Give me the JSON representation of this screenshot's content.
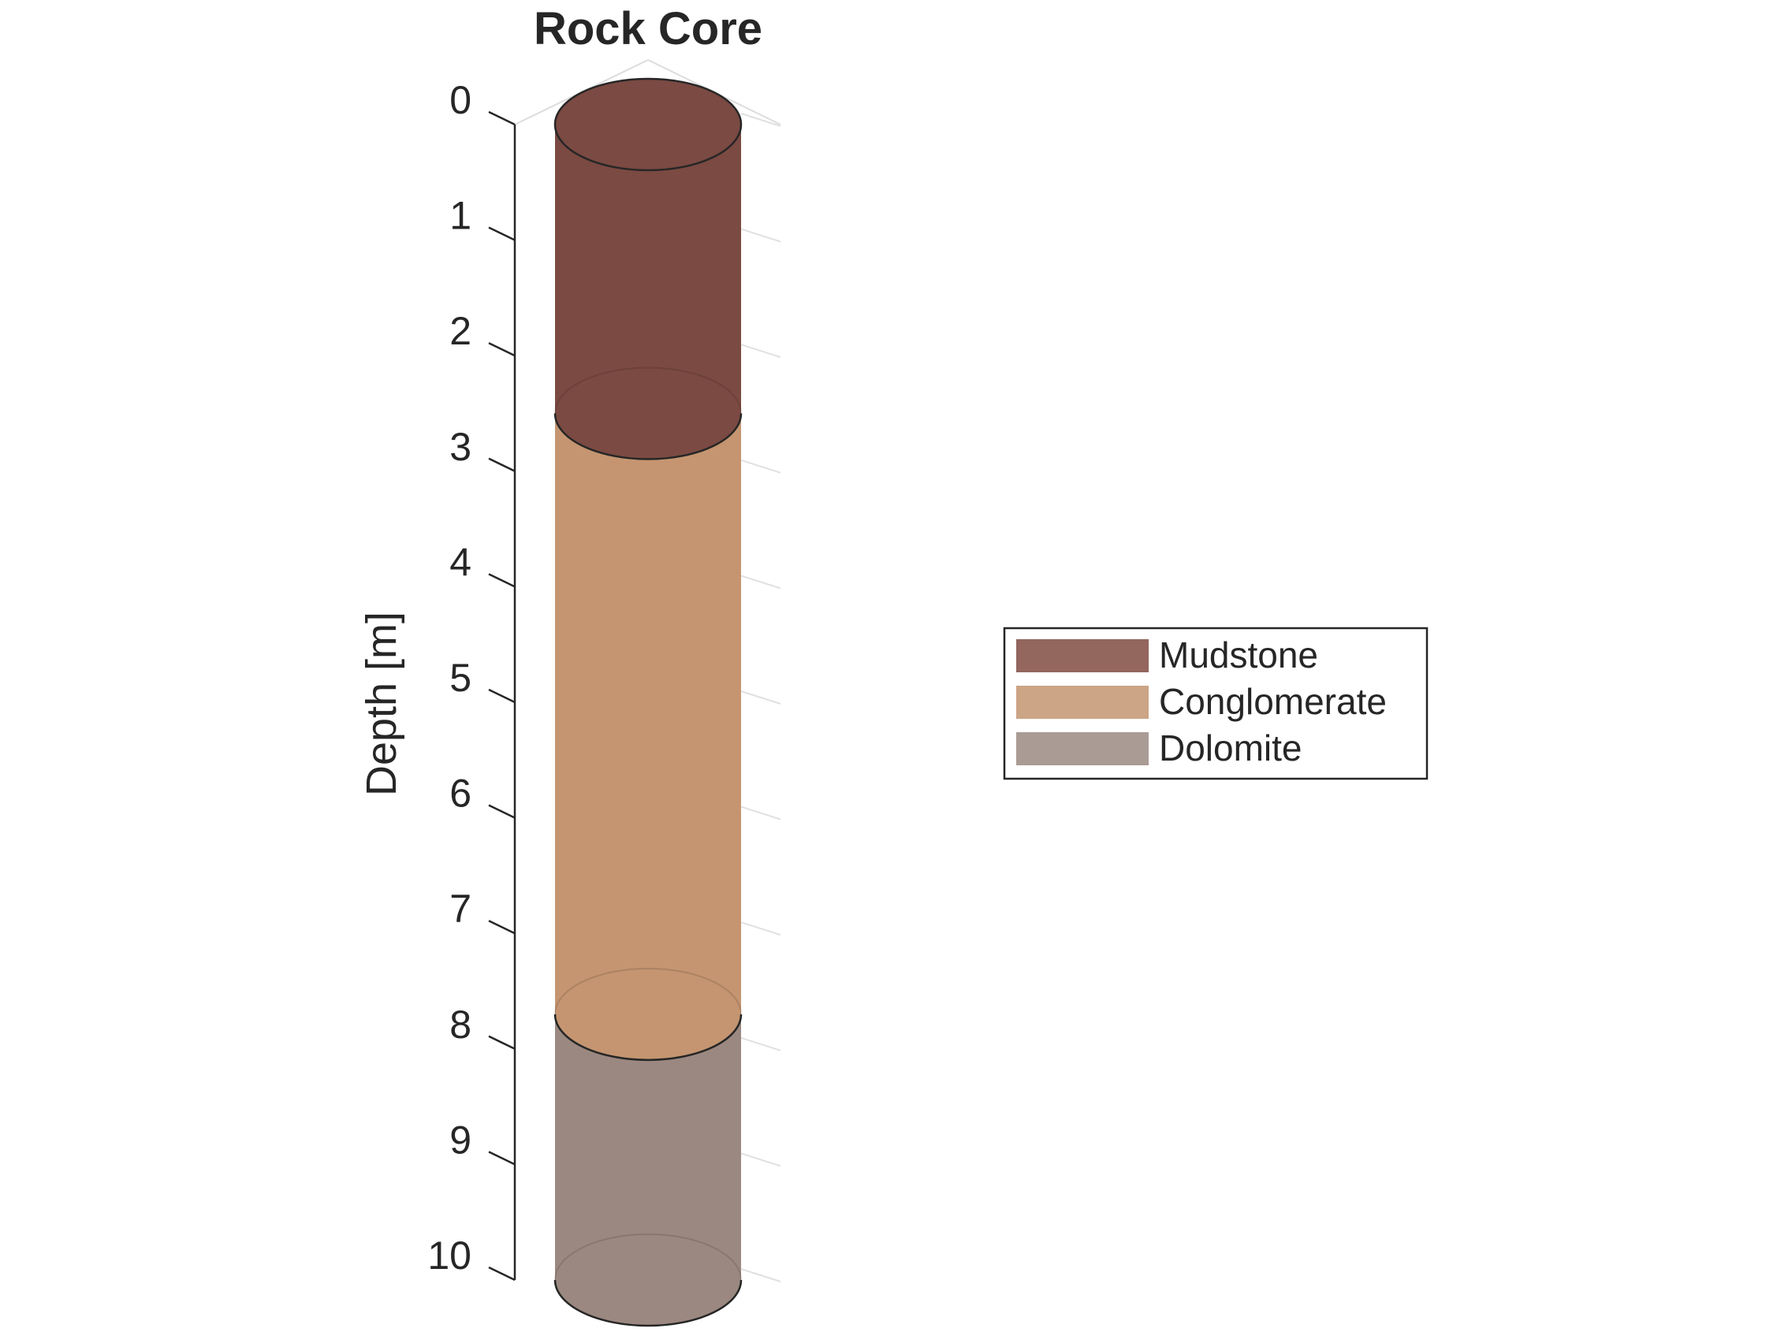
{
  "chart_data": {
    "type": "stratigraphic-column",
    "title": "Rock Core",
    "ylabel": "Depth [m]",
    "ylim": [
      0,
      10
    ],
    "y_direction": "reversed",
    "yticks": [
      "0",
      "1",
      "2",
      "3",
      "4",
      "5",
      "6",
      "7",
      "8",
      "9",
      "10"
    ],
    "grid": true,
    "legend_position": "right",
    "layers": [
      {
        "name": "Mudstone",
        "top": 0,
        "bottom": 2.5,
        "color": "#7b4a42",
        "legend_color": "#93665e"
      },
      {
        "name": "Conglomerate",
        "top": 2.5,
        "bottom": 7.7,
        "color": "#c49570",
        "legend_color": "#cca486"
      },
      {
        "name": "Dolomite",
        "top": 7.7,
        "bottom": 10,
        "color": "#9b8880",
        "legend_color": "#aa9b95"
      }
    ]
  }
}
